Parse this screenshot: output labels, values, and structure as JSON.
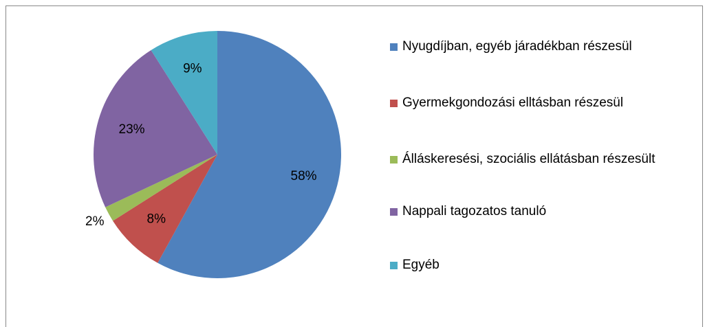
{
  "chart_data": {
    "type": "pie",
    "categories": [
      "Nyugdíjban, egyéb járadékban részesül",
      "Gyermekgondozási elltásban részesül",
      "Álláskeresési, szociális ellátásban részesült",
      "Nappali tagozatos tanuló",
      "Egyéb"
    ],
    "values": [
      58,
      8,
      2,
      23,
      9
    ],
    "value_labels": [
      "58%",
      "8%",
      "2%",
      "23%",
      "9%"
    ],
    "colors": [
      "#4f81bd",
      "#c0504d",
      "#9bbb59",
      "#8064a2",
      "#4bacc6"
    ],
    "legend": "right"
  }
}
